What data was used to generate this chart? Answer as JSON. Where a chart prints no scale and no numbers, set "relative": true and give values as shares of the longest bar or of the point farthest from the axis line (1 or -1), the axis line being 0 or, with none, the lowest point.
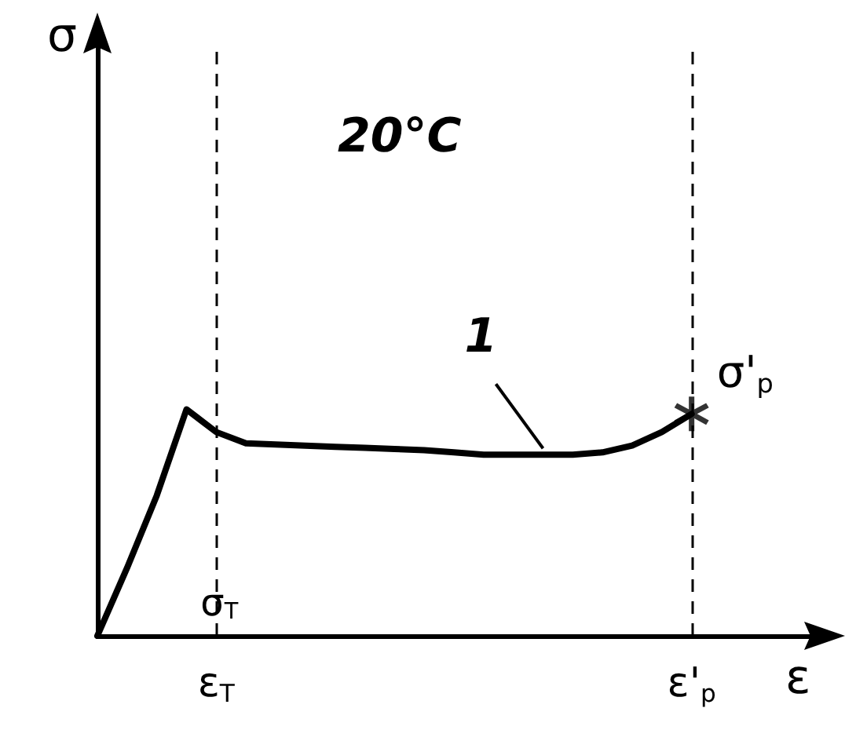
{
  "chart_data": {
    "type": "line",
    "relative": true,
    "xlabel": "ε",
    "categories": [
      null,
      null,
      null,
      null,
      "ε$_{T}$",
      null,
      null,
      null,
      null,
      null,
      null,
      null,
      null,
      null,
      null,
      null,
      null,
      null,
      null,
      null,
      "ε'$_{p}$",
      null,
      null,
      null,
      null
    ],
    "series": [
      {
        "color": "#000000",
        "marker": "none",
        "values": [
          0,
          0.3,
          0.62,
          1.0,
          0.9,
          0.85,
          0.845,
          0.84,
          0.835,
          0.83,
          0.825,
          0.82,
          0.81,
          0.8,
          0.8,
          0.8,
          0.8,
          0.81,
          0.84,
          0.9,
          0.98,
          null,
          null,
          null,
          null
        ]
      },
      {
        "type": "scatter",
        "color": "#000000",
        "marker": "star",
        "values": [
          null,
          null,
          null,
          null,
          null,
          null,
          null,
          null,
          null,
          null,
          null,
          null,
          null,
          null,
          null,
          null,
          null,
          null,
          null,
          null,
          0.98,
          null,
          null,
          null,
          null
        ]
      }
    ],
    "ref_lines": [
      {
        "axis": "x",
        "value": "ε$_{T}$",
        "label": "σ$_{T}$",
        "line_style": "dashed"
      },
      {
        "axis": "x",
        "value": "ε'$_{p}$",
        "line_style": "dashed"
      }
    ],
    "annotations": [
      "20°C",
      "1",
      "σ",
      {
        "text": "σ'$_{p}$",
        "x": "ε'$_{p}$",
        "y": 0.98
      }
    ]
  }
}
